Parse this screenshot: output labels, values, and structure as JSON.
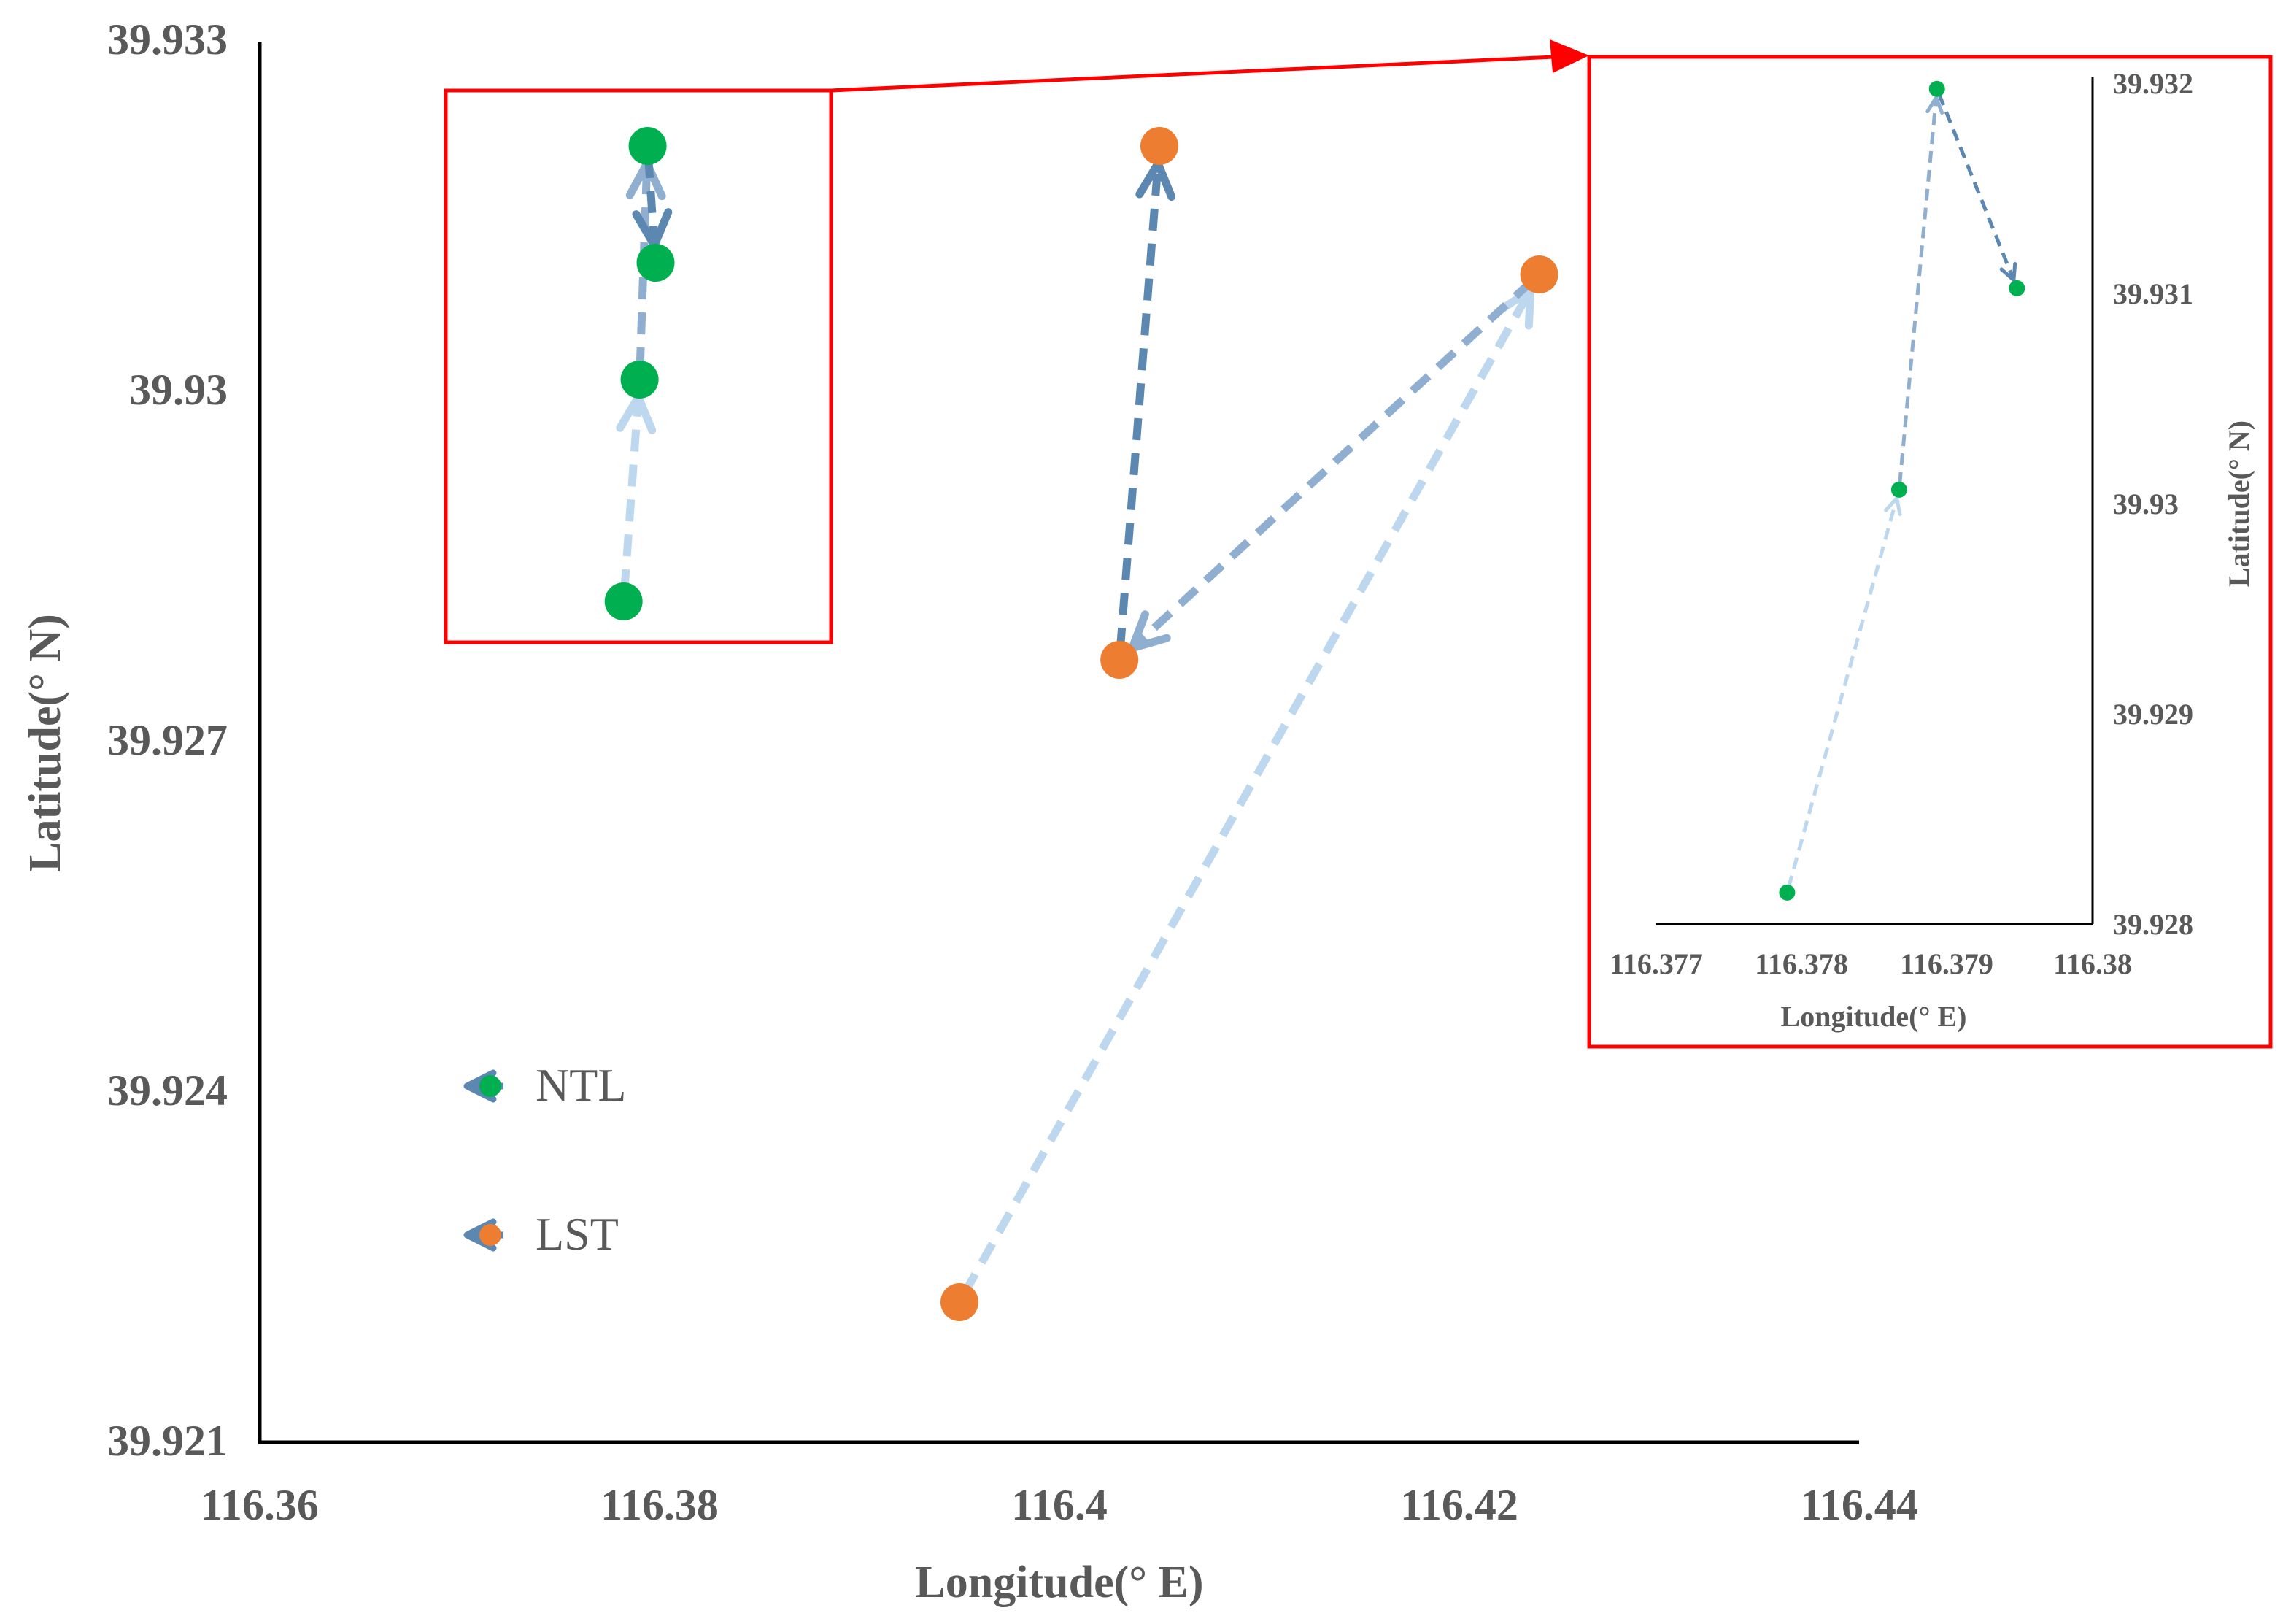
{
  "chart_data": [
    {
      "type": "scatter",
      "title": "",
      "xlabel": "Longitude(° E)",
      "ylabel": "Latitude(° N)",
      "xlim": [
        116.36,
        116.44
      ],
      "ylim": [
        39.921,
        39.933
      ],
      "x_ticks": [
        "116.36",
        "116.38",
        "116.4",
        "116.42",
        "116.44"
      ],
      "y_ticks": [
        "39.921",
        "39.924",
        "39.927",
        "39.93",
        "39.933"
      ],
      "legend": [
        {
          "name": "NTL",
          "color": "#00b050"
        },
        {
          "name": "LST",
          "color": "#ed7d31"
        }
      ],
      "series": [
        {
          "name": "NTL",
          "color": "#00b050",
          "points": [
            {
              "x": 116.3782,
              "y": 39.9282
            },
            {
              "x": 116.379,
              "y": 39.9301
            },
            {
              "x": 116.3794,
              "y": 39.9321
            },
            {
              "x": 116.3798,
              "y": 39.9311
            }
          ]
        },
        {
          "name": "LST",
          "color": "#ed7d31",
          "points": [
            {
              "x": 116.395,
              "y": 39.9222
            },
            {
              "x": 116.424,
              "y": 39.931
            },
            {
              "x": 116.403,
              "y": 39.9277
            },
            {
              "x": 116.405,
              "y": 39.9321
            }
          ]
        }
      ],
      "arrow_colors": [
        "#bdd7ee",
        "#8faed0",
        "#5b87b0",
        "#2e5a86"
      ]
    },
    {
      "type": "scatter",
      "title": "",
      "xlabel": "Longitude(° E)",
      "ylabel": "Latitude(° N)",
      "xlim": [
        116.377,
        116.38
      ],
      "ylim": [
        39.928,
        39.932
      ],
      "x_ticks": [
        "116.377",
        "116.378",
        "116.379",
        "116.38"
      ],
      "y_ticks": [
        "39.928",
        "39.929",
        "39.93",
        "39.931",
        "39.932"
      ],
      "series": [
        {
          "name": "NTL",
          "color": "#00b050",
          "points": [
            {
              "x": 116.3779,
              "y": 39.92815
            },
            {
              "x": 116.37867,
              "y": 39.93007
            },
            {
              "x": 116.37893,
              "y": 39.93198
            },
            {
              "x": 116.37948,
              "y": 39.93103
            }
          ]
        }
      ]
    }
  ],
  "colors": {
    "axis": "#000000",
    "text": "#595959",
    "highlight": "#ff0000",
    "ntl": "#00b050",
    "lst": "#ed7d31"
  }
}
